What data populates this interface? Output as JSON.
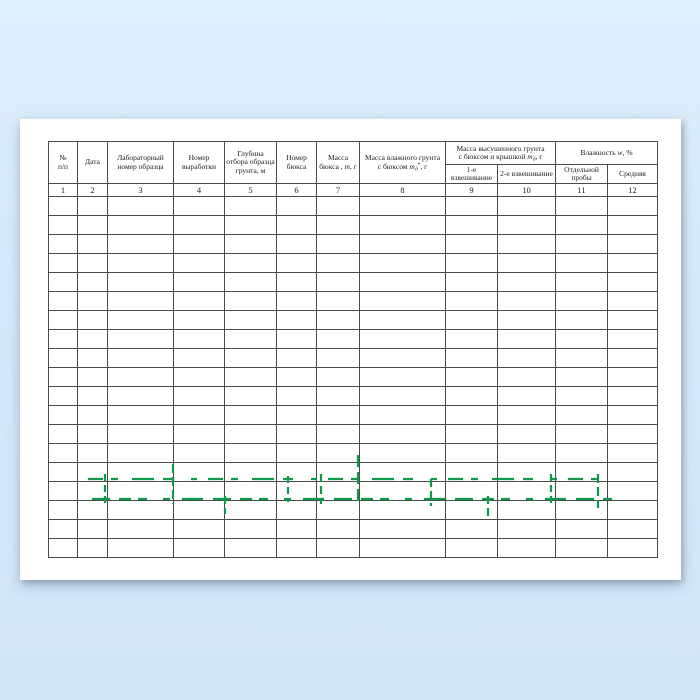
{
  "background": {
    "color_top": "#def0fe",
    "color_bottom": "#d3e6f8"
  },
  "paper": {
    "color": "#ffffff"
  },
  "watermark": {
    "color": "#0d9b4b",
    "style": "dashed green strokes (illegible watermark text)"
  },
  "table": {
    "border_color": "#4a4a4a",
    "empty_rows": 19,
    "columns": [
      {
        "num": "1",
        "label_html": "№<br>п/п"
      },
      {
        "num": "2",
        "label_html": "Дата"
      },
      {
        "num": "3",
        "label_html": "Лабораторный номер образца"
      },
      {
        "num": "4",
        "label_html": "Номер выработки"
      },
      {
        "num": "5",
        "label_html": "Глубина отбора образца грунта, м"
      },
      {
        "num": "6",
        "label_html": "Номер бюкса"
      },
      {
        "num": "7",
        "label_html": "Масса бюкса&nbsp;, <i>m</i>, г"
      },
      {
        "num": "8",
        "label_html": "Масса влажного грунта с&nbsp;бюксом <i>m<sub>д</sub></i><sup>*</sup>, г"
      }
    ],
    "groups": [
      {
        "label_html": "Масса высушенного грунта с&nbsp;бюксом и крышкой <i>m<sub>д</sub></i>, г",
        "subcolumns": [
          {
            "num": "9",
            "label_html": "1-е взвешивание"
          },
          {
            "num": "10",
            "label_html": "2-е взвешивание"
          }
        ]
      },
      {
        "label_html": "Влажность <i>w</i>, %",
        "subcolumns": [
          {
            "num": "11",
            "label_html": "Отдельной пробы"
          },
          {
            "num": "12",
            "label_html": "Средняя"
          }
        ]
      }
    ]
  }
}
